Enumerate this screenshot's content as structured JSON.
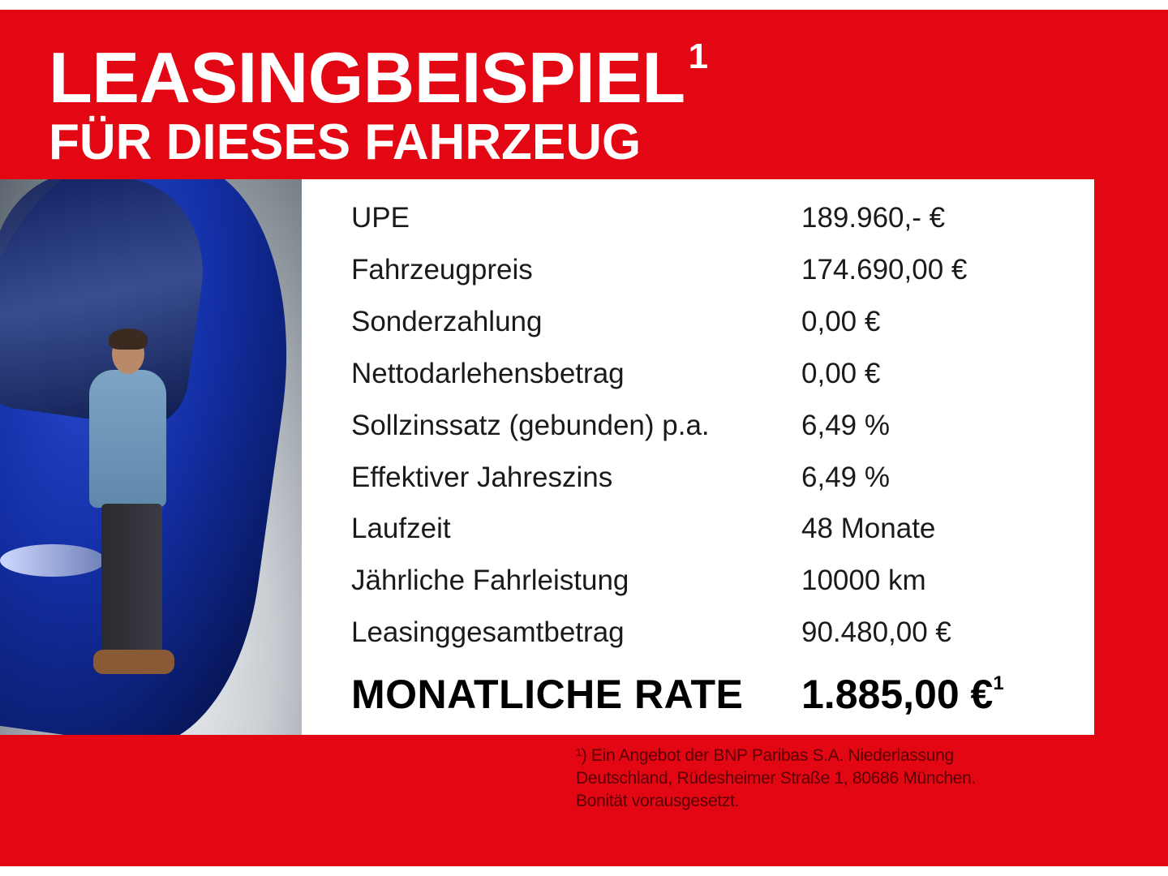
{
  "header": {
    "title": "LEASINGBEISPIEL",
    "title_marker": "1",
    "subtitle": "FÜR DIESES FAHRZEUG"
  },
  "colors": {
    "background": "#e30613",
    "table_bg": "#ffffff",
    "title_text": "#ffffff"
  },
  "photo": {
    "description_icon": "car-with-man-photo"
  },
  "table": {
    "rows": [
      {
        "label": "UPE",
        "value": "189.960,- €"
      },
      {
        "label": "Fahrzeugpreis",
        "value": "174.690,00 €"
      },
      {
        "label": "Sonderzahlung",
        "value": "0,00 €"
      },
      {
        "label": "Nettodarlehensbetrag",
        "value": "0,00 €"
      },
      {
        "label": "Sollzinssatz (gebunden) p.a.",
        "value": "6,49 %"
      },
      {
        "label": "Effektiver Jahreszins",
        "value": "6,49 %"
      },
      {
        "label": "Laufzeit",
        "value": "48 Monate"
      },
      {
        "label": "Jährliche Fahrleistung",
        "value": "10000 km"
      },
      {
        "label": "Leasinggesamtbetrag",
        "value": "90.480,00 €"
      }
    ],
    "rate": {
      "label": "MONATLICHE RATE",
      "value": "1.885,00 €",
      "marker": "1"
    }
  },
  "footnote": {
    "lines": [
      "¹) Ein Angebot der BNP Paribas S.A. Niederlassung",
      "Deutschland, Rüdesheimer Straße 1, 80686 München.",
      "Bonität vorausgesetzt."
    ]
  }
}
